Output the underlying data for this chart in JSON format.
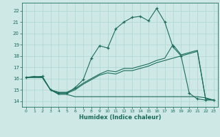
{
  "background_color": "#cde8e5",
  "grid_color": "#b2d8d4",
  "line_color": "#1a6b5a",
  "xlabel": "Humidex (Indice chaleur)",
  "ylim": [
    13.5,
    22.7
  ],
  "xlim": [
    -0.5,
    23.5
  ],
  "yticks": [
    14,
    15,
    16,
    17,
    18,
    19,
    20,
    21,
    22
  ],
  "xticks": [
    0,
    1,
    2,
    3,
    4,
    5,
    6,
    7,
    8,
    9,
    10,
    11,
    12,
    13,
    14,
    15,
    16,
    17,
    18,
    19,
    20,
    21,
    22,
    23
  ],
  "series_main_x": [
    0,
    2,
    3,
    4,
    5,
    6,
    7,
    8,
    9,
    10,
    11,
    12,
    13,
    14,
    15,
    16,
    17,
    18,
    19,
    20,
    21,
    22,
    23
  ],
  "series_main_y": [
    16.1,
    16.2,
    15.0,
    14.7,
    14.7,
    15.2,
    15.9,
    17.8,
    18.9,
    18.7,
    20.4,
    21.0,
    21.4,
    21.5,
    21.1,
    22.2,
    21.0,
    18.8,
    18.0,
    14.7,
    14.2,
    14.1,
    14.1
  ],
  "series_upper_x": [
    0,
    1,
    2,
    3,
    4,
    5,
    6,
    7,
    8,
    9,
    10,
    11,
    12,
    13,
    14,
    15,
    16,
    17,
    18,
    19,
    20,
    21,
    22,
    23
  ],
  "series_upper_y": [
    16.1,
    16.1,
    16.1,
    15.0,
    14.8,
    14.8,
    15.1,
    15.6,
    16.0,
    16.4,
    16.7,
    16.6,
    16.9,
    16.9,
    17.1,
    17.3,
    17.6,
    17.8,
    19.0,
    18.1,
    18.3,
    18.5,
    14.2,
    14.1
  ],
  "series_mid_x": [
    0,
    1,
    2,
    3,
    4,
    5,
    6,
    7,
    8,
    9,
    10,
    11,
    12,
    13,
    14,
    15,
    16,
    17,
    18,
    19,
    20,
    21,
    22,
    23
  ],
  "series_mid_y": [
    16.1,
    16.1,
    16.1,
    15.0,
    14.7,
    14.7,
    15.0,
    15.5,
    15.9,
    16.3,
    16.5,
    16.4,
    16.7,
    16.7,
    16.9,
    17.1,
    17.4,
    17.6,
    17.8,
    18.0,
    18.2,
    18.4,
    14.2,
    14.1
  ],
  "series_flat_x": [
    0,
    1,
    2,
    3,
    4,
    5,
    6,
    7,
    8,
    9,
    10,
    11,
    12,
    13,
    14,
    15,
    16,
    17,
    18,
    19,
    20,
    21,
    22,
    23
  ],
  "series_flat_y": [
    16.1,
    16.2,
    16.1,
    15.0,
    14.6,
    14.6,
    14.4,
    14.4,
    14.4,
    14.4,
    14.4,
    14.4,
    14.4,
    14.4,
    14.4,
    14.4,
    14.4,
    14.4,
    14.4,
    14.4,
    14.4,
    14.4,
    14.3,
    14.1
  ]
}
